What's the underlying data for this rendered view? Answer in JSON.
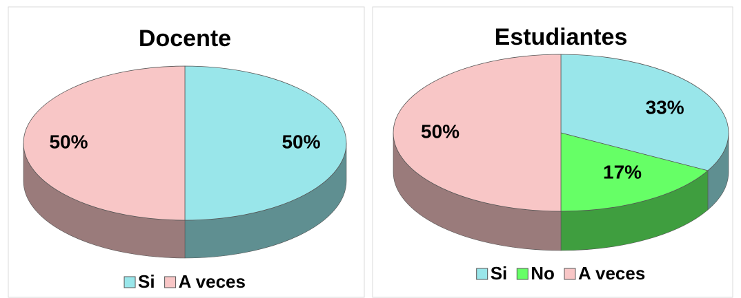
{
  "chart_data": [
    {
      "type": "pie",
      "title": "Docente",
      "categories": [
        "Si",
        "A veces"
      ],
      "values": [
        50,
        50
      ],
      "value_labels": [
        "50%",
        "50%"
      ],
      "colors": [
        "#99e6ea",
        "#f8c6c6"
      ]
    },
    {
      "type": "pie",
      "title": "Estudiantes",
      "categories": [
        "Si",
        "No",
        "A veces"
      ],
      "values": [
        33,
        17,
        50
      ],
      "value_labels": [
        "33%",
        "17%",
        "50%"
      ],
      "colors": [
        "#99e6ea",
        "#66ff66",
        "#f8c6c6"
      ]
    }
  ]
}
